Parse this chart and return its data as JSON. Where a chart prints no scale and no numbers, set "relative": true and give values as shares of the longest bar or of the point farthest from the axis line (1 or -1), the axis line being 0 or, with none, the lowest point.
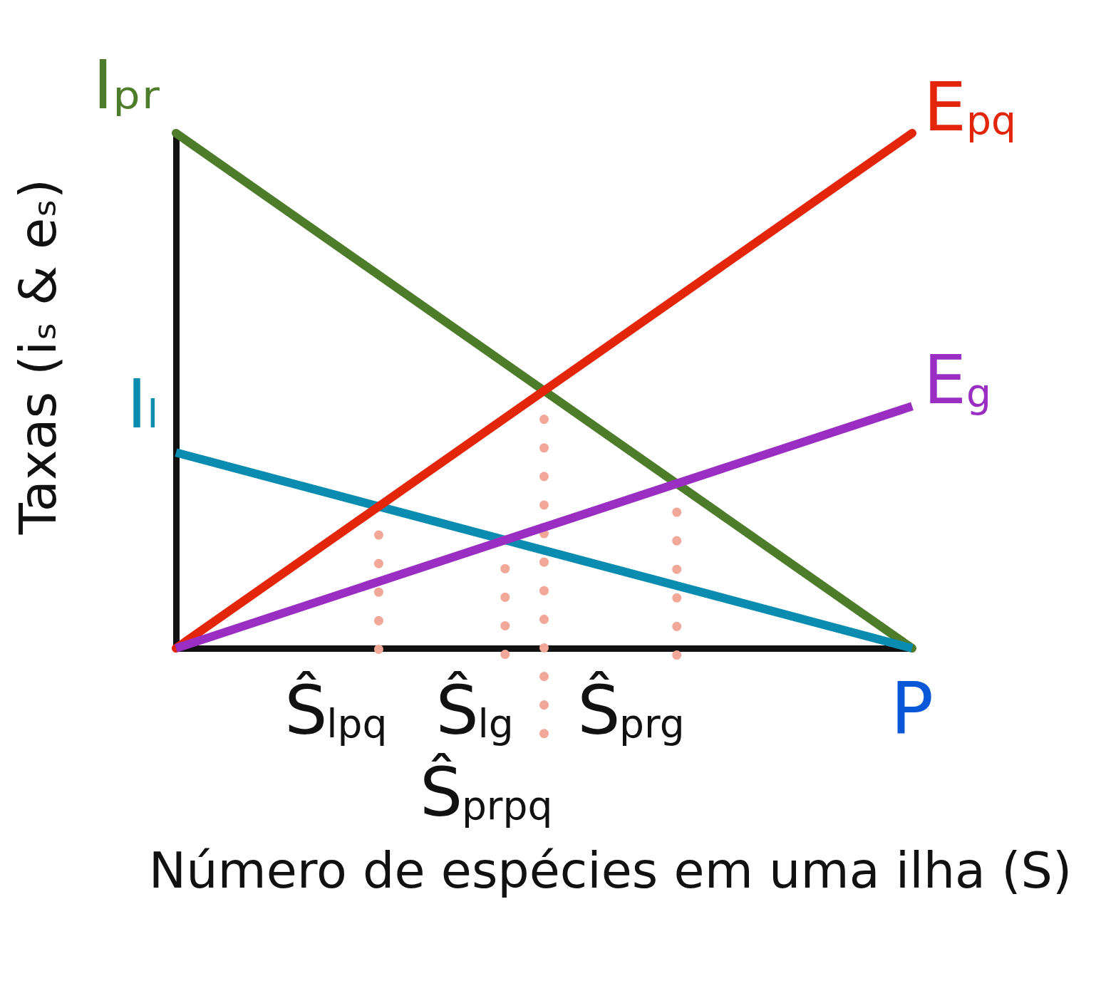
{
  "chart_data": {
    "type": "line",
    "relative": true,
    "xlabel": "Número de espécies em uma ilha (S)",
    "ylabel": "Taxas (iₛ & eₛ)",
    "categories": [
      null,
      null
    ],
    "series": [
      {
        "name": "Iₚᵣ",
        "color": "#4d7c2a",
        "values": [
          1,
          0
        ]
      },
      {
        "name": "Iₗ",
        "color": "#0a8cb0",
        "values": [
          0.38,
          0
        ]
      },
      {
        "name": "E$_{pq}$",
        "color": "#e3260a",
        "values": [
          0,
          1
        ]
      },
      {
        "name": "E$_{g}$",
        "color": "#9a2ec2",
        "values": [
          0,
          0.47
        ]
      }
    ],
    "annotations": [
      "Ŝ$_{lpq}$",
      "Ŝ$_{lg}$",
      "Ŝ$_{prpq}$",
      "Ŝ$_{prg}$",
      "P"
    ]
  }
}
